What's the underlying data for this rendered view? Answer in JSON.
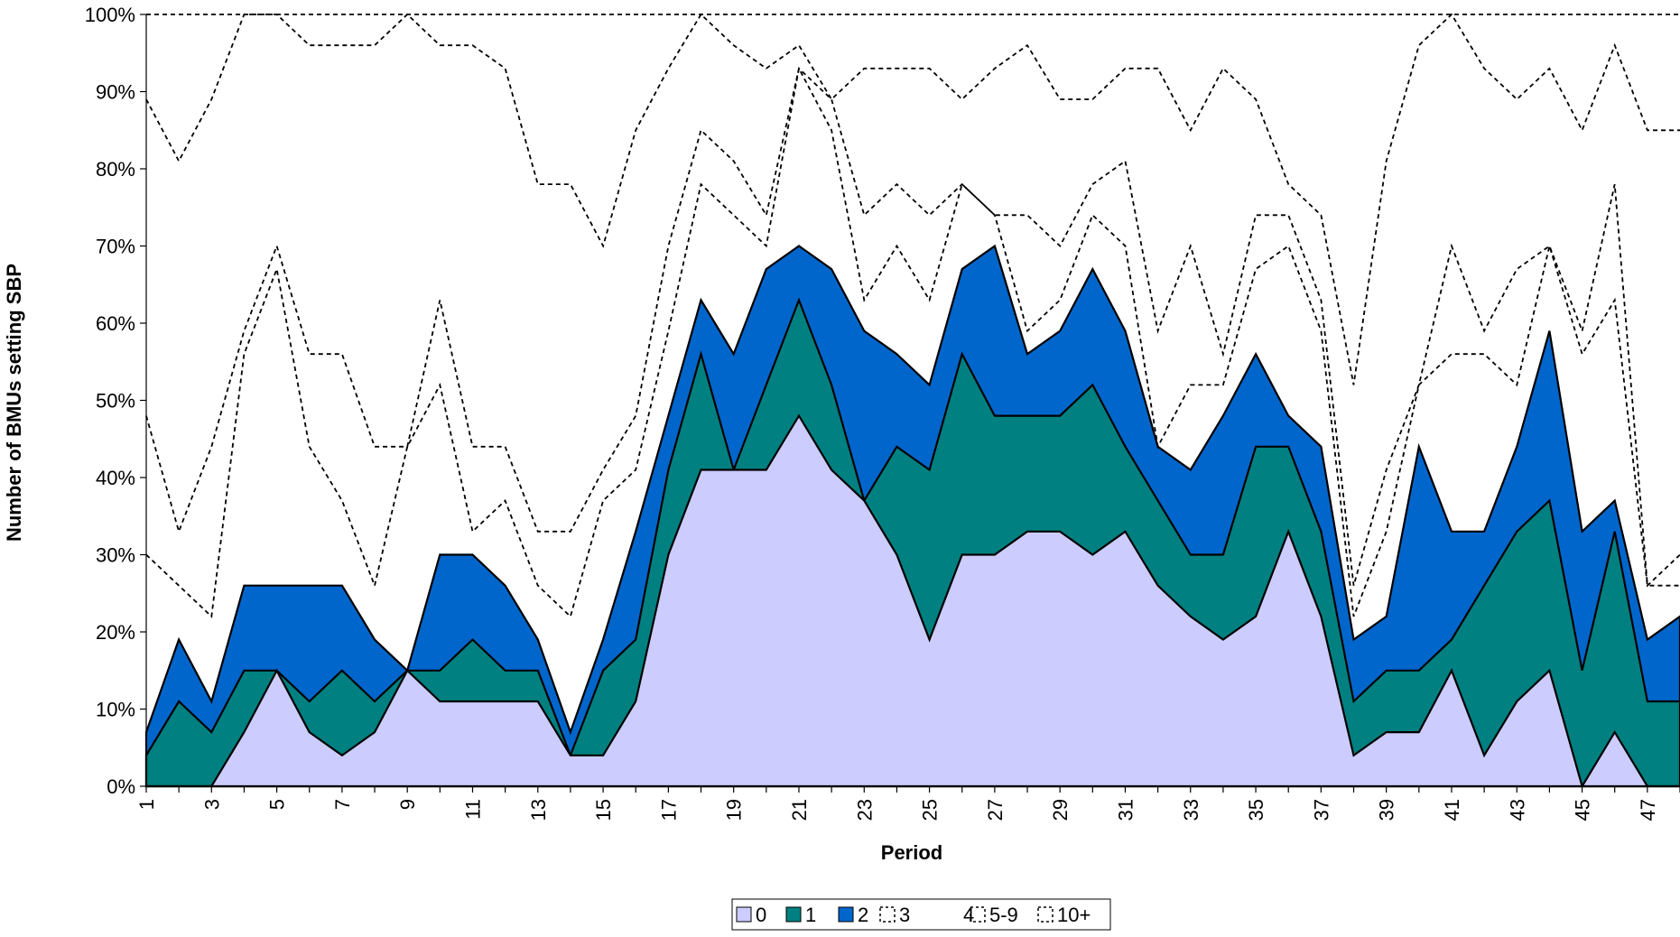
{
  "chart_data": {
    "type": "area",
    "xlabel": "Period",
    "ylabel": "Number of BMUs setting SBP",
    "ylim": [
      0,
      100
    ],
    "yticks": [
      "0%",
      "10%",
      "20%",
      "30%",
      "40%",
      "50%",
      "60%",
      "70%",
      "80%",
      "90%",
      "100%"
    ],
    "x": [
      1,
      2,
      3,
      4,
      5,
      6,
      7,
      8,
      9,
      10,
      11,
      12,
      13,
      14,
      15,
      16,
      17,
      18,
      19,
      20,
      21,
      22,
      23,
      24,
      25,
      26,
      27,
      28,
      29,
      30,
      31,
      32,
      33,
      34,
      35,
      36,
      37,
      38,
      39,
      40,
      41,
      42,
      43,
      44,
      45,
      46,
      47,
      48
    ],
    "xtick_labels": [
      "1",
      "3",
      "5",
      "7",
      "9",
      "11",
      "13",
      "15",
      "17",
      "19",
      "21",
      "23",
      "25",
      "27",
      "29",
      "31",
      "33",
      "35",
      "37",
      "39",
      "41",
      "43",
      "45",
      "47"
    ],
    "legend_position": "bottom",
    "series": [
      {
        "name": "0",
        "style": "filled",
        "color": "#ccccff",
        "values": [
          0,
          0,
          0,
          7,
          15,
          7,
          4,
          7,
          15,
          11,
          11,
          11,
          11,
          4,
          4,
          11,
          30,
          41,
          41,
          41,
          48,
          41,
          37,
          30,
          19,
          30,
          30,
          33,
          33,
          30,
          33,
          26,
          22,
          19,
          22,
          33,
          22,
          4,
          7,
          7,
          15,
          4,
          11,
          15,
          0,
          7,
          0,
          0
        ]
      },
      {
        "name": "1",
        "style": "filled",
        "color": "#008080",
        "values": [
          4,
          11,
          7,
          15,
          15,
          11,
          15,
          11,
          15,
          15,
          19,
          15,
          15,
          4,
          15,
          19,
          41,
          56,
          41,
          52,
          63,
          52,
          37,
          44,
          41,
          56,
          48,
          48,
          48,
          52,
          44,
          37,
          30,
          30,
          44,
          44,
          33,
          11,
          15,
          15,
          19,
          26,
          33,
          37,
          15,
          33,
          11,
          11
        ]
      },
      {
        "name": "2",
        "style": "filled",
        "color": "#0066cc",
        "values": [
          7,
          19,
          11,
          26,
          26,
          26,
          26,
          19,
          15,
          30,
          30,
          26,
          19,
          7,
          19,
          33,
          48,
          63,
          56,
          67,
          70,
          67,
          59,
          56,
          52,
          67,
          70,
          56,
          59,
          67,
          59,
          44,
          41,
          48,
          56,
          48,
          44,
          19,
          22,
          44,
          33,
          33,
          44,
          59,
          33,
          37,
          19,
          22
        ]
      },
      {
        "name": "3",
        "style": "dashed",
        "color": "#000000",
        "values": [
          30,
          26,
          22,
          56,
          67,
          44,
          37,
          26,
          44,
          52,
          33,
          37,
          26,
          22,
          37,
          41,
          59,
          78,
          74,
          70,
          93,
          85,
          63,
          70,
          63,
          78,
          74,
          59,
          63,
          74,
          70,
          44,
          52,
          52,
          67,
          70,
          59,
          22,
          33,
          52,
          56,
          56,
          52,
          70,
          56,
          63,
          26,
          26
        ]
      },
      {
        "name": "4",
        "style": "dashed",
        "color": "#000000",
        "values": [
          48,
          33,
          44,
          59,
          70,
          56,
          56,
          44,
          44,
          63,
          44,
          44,
          33,
          33,
          41,
          48,
          70,
          85,
          81,
          74,
          93,
          89,
          74,
          78,
          74,
          78,
          74,
          74,
          70,
          78,
          81,
          59,
          70,
          56,
          74,
          74,
          63,
          26,
          41,
          52,
          70,
          59,
          67,
          70,
          59,
          78,
          26,
          30
        ]
      },
      {
        "name": "5-9",
        "style": "dashed",
        "color": "#000000",
        "values": [
          89,
          81,
          89,
          100,
          100,
          96,
          96,
          96,
          100,
          96,
          96,
          93,
          78,
          78,
          70,
          85,
          93,
          100,
          96,
          93,
          96,
          89,
          93,
          93,
          93,
          89,
          93,
          96,
          89,
          89,
          93,
          93,
          85,
          93,
          89,
          78,
          74,
          52,
          81,
          96,
          100,
          93,
          89,
          93,
          85,
          96,
          85,
          85
        ]
      },
      {
        "name": "10+",
        "style": "dashed",
        "color": "#000000",
        "values": [
          100,
          100,
          100,
          100,
          100,
          100,
          100,
          100,
          100,
          100,
          100,
          100,
          100,
          100,
          100,
          100,
          100,
          100,
          100,
          100,
          100,
          100,
          100,
          100,
          100,
          100,
          100,
          100,
          100,
          100,
          100,
          100,
          100,
          100,
          100,
          100,
          100,
          100,
          100,
          100,
          100,
          100,
          100,
          100,
          100,
          100,
          100,
          100
        ]
      }
    ]
  }
}
